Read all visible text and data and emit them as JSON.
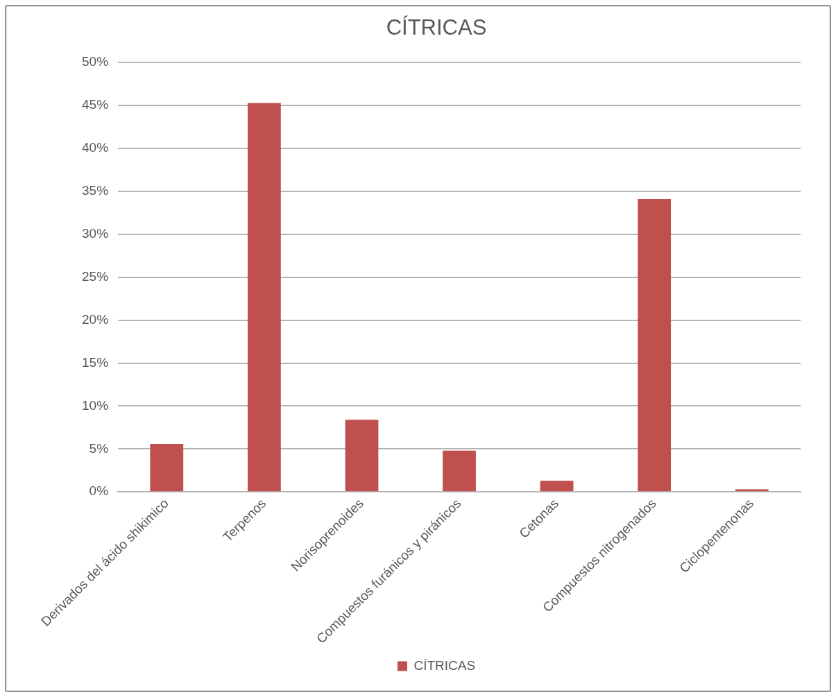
{
  "chart_data": {
    "type": "bar",
    "title": "CÍTRICAS",
    "categories": [
      "Derivados del ácido shikimico",
      "Terpenos",
      "Norisoprenoides",
      "Compuestos furánicos y piránicos",
      "Cetonas",
      "Compuestos nitrogenados",
      "Ciclopentenonas"
    ],
    "series": [
      {
        "name": "CÍTRICAS",
        "color": "#c0504d",
        "values": [
          5.6,
          45.3,
          8.4,
          4.8,
          1.3,
          34.1,
          0.3
        ]
      }
    ],
    "ylim": [
      0,
      50
    ],
    "yticks": [
      {
        "value": 0,
        "label": "0%"
      },
      {
        "value": 5,
        "label": "5%"
      },
      {
        "value": 10,
        "label": "10%"
      },
      {
        "value": 15,
        "label": "15%"
      },
      {
        "value": 20,
        "label": "20%"
      },
      {
        "value": 25,
        "label": "25%"
      },
      {
        "value": 30,
        "label": "30%"
      },
      {
        "value": 35,
        "label": "35%"
      },
      {
        "value": 40,
        "label": "40%"
      },
      {
        "value": 45,
        "label": "45%"
      },
      {
        "value": 50,
        "label": "50%"
      }
    ],
    "grid": "y",
    "legend": "bottom"
  }
}
